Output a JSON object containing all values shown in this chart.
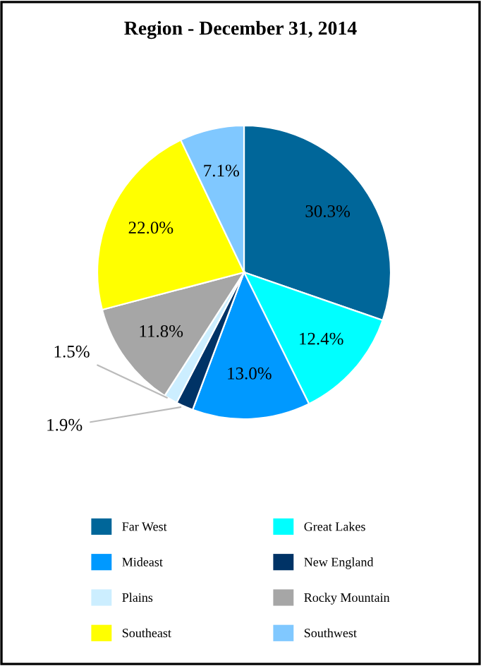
{
  "chart_data": {
    "type": "pie",
    "title": "Region - December 31, 2014",
    "categories": [
      "Far West",
      "Great Lakes",
      "Mideast",
      "New England",
      "Plains",
      "Rocky Mountain",
      "Southeast",
      "Southwest"
    ],
    "values": [
      30.3,
      12.4,
      13.0,
      1.9,
      1.5,
      11.8,
      22.0,
      7.1
    ],
    "value_labels": [
      "30.3%",
      "12.4%",
      "13.0%",
      "1.9%",
      "1.5%",
      "11.8%",
      "22.0%",
      "7.1%"
    ],
    "colors": [
      "#006699",
      "#00ffff",
      "#0099ff",
      "#003366",
      "#cceeff",
      "#a6a6a6",
      "#ffff00",
      "#80c8ff"
    ],
    "legend": "bottom"
  }
}
